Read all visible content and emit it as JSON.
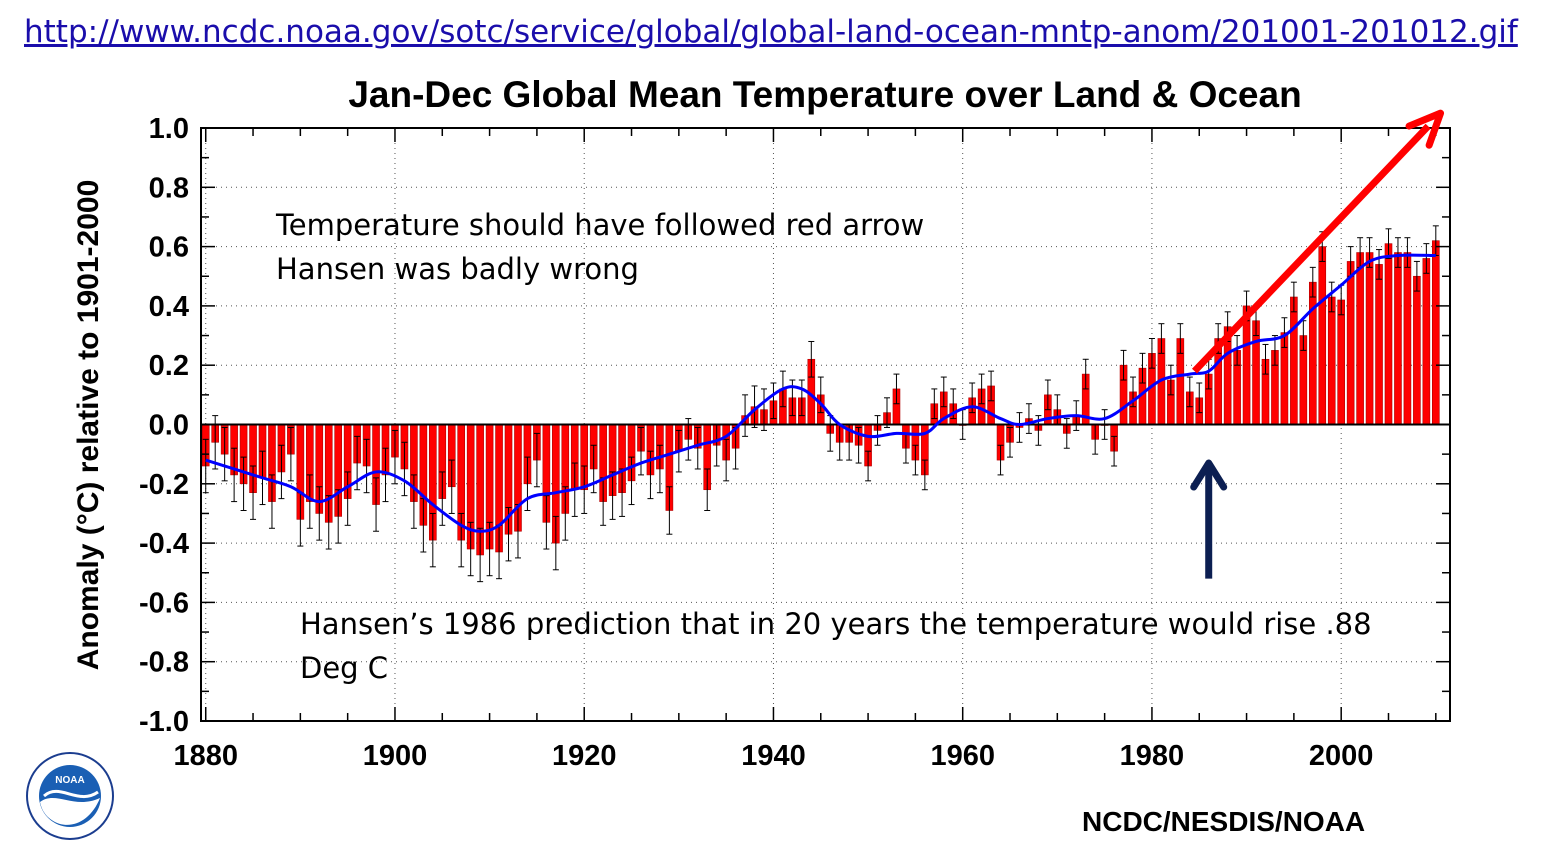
{
  "header": {
    "url_text": "http://www.ncdc.noaa.gov/sotc/service/global/global-land-ocean-mntp-anom/201001-201012.gif"
  },
  "annotations": {
    "line1": "Temperature should have followed red arrow",
    "line2": "Hansen was badly wrong",
    "prediction_line1": "Hansen’s 1986 prediction that in 20 years the temperature would rise .88",
    "prediction_line2": "Deg C"
  },
  "footer": {
    "credit": "NCDC/NESDIS/NOAA",
    "logo_text": "NOAA"
  },
  "colors": {
    "bar": "#ff0000",
    "bar_edge": "#b00000",
    "smooth_line": "#0000ff",
    "error_bar": "#000000",
    "up_arrow": "#0c1f52",
    "red_arrow": "#ff0000"
  },
  "chart_data": {
    "type": "bar",
    "title": "Jan-Dec Global Mean Temperature over Land & Ocean",
    "xlabel": "",
    "ylabel": "Anomaly (°C) relative to 1901-2000",
    "xlim": [
      1879.5,
      2011.5
    ],
    "ylim": [
      -1.0,
      1.0
    ],
    "x_ticks": [
      1880,
      1900,
      1920,
      1940,
      1960,
      1980,
      2000
    ],
    "y_ticks": [
      1.0,
      0.8,
      0.6,
      0.4,
      0.2,
      0.0,
      -0.2,
      -0.4,
      -0.6,
      -0.8,
      -1.0
    ],
    "y_tick_labels": [
      "1.0",
      "0.8",
      "0.6",
      "0.4",
      "0.2",
      "0.0",
      "-0.2",
      "-0.4",
      "-0.6",
      "-0.8",
      "-1.0"
    ],
    "grid": "dotted",
    "years": [
      1880,
      1881,
      1882,
      1883,
      1884,
      1885,
      1886,
      1887,
      1888,
      1889,
      1890,
      1891,
      1892,
      1893,
      1894,
      1895,
      1896,
      1897,
      1898,
      1899,
      1900,
      1901,
      1902,
      1903,
      1904,
      1905,
      1906,
      1907,
      1908,
      1909,
      1910,
      1911,
      1912,
      1913,
      1914,
      1915,
      1916,
      1917,
      1918,
      1919,
      1920,
      1921,
      1922,
      1923,
      1924,
      1925,
      1926,
      1927,
      1928,
      1929,
      1930,
      1931,
      1932,
      1933,
      1934,
      1935,
      1936,
      1937,
      1938,
      1939,
      1940,
      1941,
      1942,
      1943,
      1944,
      1945,
      1946,
      1947,
      1948,
      1949,
      1950,
      1951,
      1952,
      1953,
      1954,
      1955,
      1956,
      1957,
      1958,
      1959,
      1960,
      1961,
      1962,
      1963,
      1964,
      1965,
      1966,
      1967,
      1968,
      1969,
      1970,
      1971,
      1972,
      1973,
      1974,
      1975,
      1976,
      1977,
      1978,
      1979,
      1980,
      1981,
      1982,
      1983,
      1984,
      1985,
      1986,
      1987,
      1988,
      1989,
      1990,
      1991,
      1992,
      1993,
      1994,
      1995,
      1996,
      1997,
      1998,
      1999,
      2000,
      2001,
      2002,
      2003,
      2004,
      2005,
      2006,
      2007,
      2008,
      2009,
      2010
    ],
    "anomaly": [
      -0.14,
      -0.06,
      -0.1,
      -0.17,
      -0.2,
      -0.23,
      -0.18,
      -0.26,
      -0.16,
      -0.1,
      -0.32,
      -0.26,
      -0.3,
      -0.33,
      -0.31,
      -0.25,
      -0.13,
      -0.14,
      -0.27,
      -0.17,
      -0.11,
      -0.15,
      -0.26,
      -0.34,
      -0.39,
      -0.25,
      -0.21,
      -0.39,
      -0.42,
      -0.44,
      -0.42,
      -0.43,
      -0.37,
      -0.36,
      -0.2,
      -0.12,
      -0.33,
      -0.4,
      -0.3,
      -0.22,
      -0.22,
      -0.15,
      -0.26,
      -0.24,
      -0.23,
      -0.19,
      -0.09,
      -0.17,
      -0.15,
      -0.29,
      -0.09,
      -0.05,
      -0.08,
      -0.22,
      -0.07,
      -0.12,
      -0.08,
      0.03,
      0.06,
      0.05,
      0.08,
      0.12,
      0.09,
      0.09,
      0.22,
      0.1,
      -0.03,
      -0.06,
      -0.06,
      -0.07,
      -0.14,
      -0.02,
      0.04,
      0.12,
      -0.08,
      -0.12,
      -0.17,
      0.07,
      0.11,
      0.07,
      0.0,
      0.09,
      0.12,
      0.13,
      -0.12,
      -0.06,
      -0.01,
      0.02,
      -0.02,
      0.1,
      0.05,
      -0.03,
      0.03,
      0.17,
      -0.05,
      0.0,
      -0.09,
      0.2,
      0.11,
      0.19,
      0.24,
      0.29,
      0.15,
      0.29,
      0.11,
      0.09,
      0.17,
      0.29,
      0.33,
      0.25,
      0.4,
      0.35,
      0.22,
      0.25,
      0.31,
      0.43,
      0.3,
      0.48,
      0.6,
      0.43,
      0.42,
      0.55,
      0.58,
      0.58,
      0.54,
      0.61,
      0.58,
      0.58,
      0.5,
      0.56,
      0.62
    ],
    "error_margin": [
      0.09,
      0.09,
      0.09,
      0.09,
      0.09,
      0.09,
      0.09,
      0.09,
      0.09,
      0.09,
      0.09,
      0.09,
      0.09,
      0.09,
      0.09,
      0.09,
      0.09,
      0.09,
      0.09,
      0.09,
      0.09,
      0.09,
      0.09,
      0.09,
      0.09,
      0.09,
      0.09,
      0.09,
      0.09,
      0.09,
      0.09,
      0.09,
      0.09,
      0.09,
      0.09,
      0.09,
      0.09,
      0.09,
      0.09,
      0.09,
      0.08,
      0.08,
      0.08,
      0.08,
      0.08,
      0.08,
      0.08,
      0.08,
      0.08,
      0.08,
      0.07,
      0.07,
      0.07,
      0.07,
      0.07,
      0.07,
      0.07,
      0.07,
      0.07,
      0.07,
      0.06,
      0.06,
      0.06,
      0.06,
      0.06,
      0.06,
      0.06,
      0.06,
      0.06,
      0.06,
      0.05,
      0.05,
      0.05,
      0.05,
      0.05,
      0.05,
      0.05,
      0.05,
      0.05,
      0.05,
      0.05,
      0.05,
      0.05,
      0.05,
      0.05,
      0.05,
      0.05,
      0.05,
      0.05,
      0.05,
      0.05,
      0.05,
      0.05,
      0.05,
      0.05,
      0.05,
      0.05,
      0.05,
      0.05,
      0.05,
      0.05,
      0.05,
      0.05,
      0.05,
      0.05,
      0.05,
      0.05,
      0.05,
      0.05,
      0.05,
      0.05,
      0.05,
      0.05,
      0.05,
      0.05,
      0.05,
      0.05,
      0.05,
      0.05,
      0.05,
      0.05,
      0.05,
      0.05,
      0.05,
      0.05,
      0.05,
      0.05,
      0.05,
      0.05,
      0.05,
      0.05
    ],
    "smoothed": [
      {
        "x": 1880,
        "y": -0.12
      },
      {
        "x": 1883,
        "y": -0.15
      },
      {
        "x": 1886,
        "y": -0.18
      },
      {
        "x": 1889,
        "y": -0.21
      },
      {
        "x": 1892,
        "y": -0.26
      },
      {
        "x": 1895,
        "y": -0.21
      },
      {
        "x": 1898,
        "y": -0.16
      },
      {
        "x": 1901,
        "y": -0.19
      },
      {
        "x": 1904,
        "y": -0.27
      },
      {
        "x": 1907,
        "y": -0.34
      },
      {
        "x": 1909,
        "y": -0.36
      },
      {
        "x": 1911,
        "y": -0.34
      },
      {
        "x": 1914,
        "y": -0.25
      },
      {
        "x": 1917,
        "y": -0.23
      },
      {
        "x": 1920,
        "y": -0.21
      },
      {
        "x": 1923,
        "y": -0.17
      },
      {
        "x": 1926,
        "y": -0.13
      },
      {
        "x": 1929,
        "y": -0.1
      },
      {
        "x": 1932,
        "y": -0.07
      },
      {
        "x": 1935,
        "y": -0.04
      },
      {
        "x": 1938,
        "y": 0.05
      },
      {
        "x": 1941,
        "y": 0.12
      },
      {
        "x": 1943,
        "y": 0.12
      },
      {
        "x": 1945,
        "y": 0.07
      },
      {
        "x": 1947,
        "y": 0.0
      },
      {
        "x": 1950,
        "y": -0.04
      },
      {
        "x": 1953,
        "y": -0.03
      },
      {
        "x": 1956,
        "y": -0.03
      },
      {
        "x": 1958,
        "y": 0.02
      },
      {
        "x": 1961,
        "y": 0.06
      },
      {
        "x": 1964,
        "y": 0.02
      },
      {
        "x": 1966,
        "y": 0.0
      },
      {
        "x": 1969,
        "y": 0.02
      },
      {
        "x": 1972,
        "y": 0.03
      },
      {
        "x": 1975,
        "y": 0.02
      },
      {
        "x": 1978,
        "y": 0.08
      },
      {
        "x": 1981,
        "y": 0.15
      },
      {
        "x": 1984,
        "y": 0.17
      },
      {
        "x": 1986,
        "y": 0.18
      },
      {
        "x": 1988,
        "y": 0.24
      },
      {
        "x": 1991,
        "y": 0.28
      },
      {
        "x": 1994,
        "y": 0.3
      },
      {
        "x": 1997,
        "y": 0.39
      },
      {
        "x": 2000,
        "y": 0.47
      },
      {
        "x": 2003,
        "y": 0.55
      },
      {
        "x": 2006,
        "y": 0.57
      },
      {
        "x": 2010,
        "y": 0.57
      }
    ],
    "overlays": {
      "red_arrow": {
        "from": {
          "x": 1984.5,
          "y": 0.18
        },
        "to": {
          "x": 2010.5,
          "y": 1.05
        }
      },
      "up_arrow": {
        "x": 1986,
        "from_y": -0.52,
        "to_y": -0.13
      }
    }
  }
}
